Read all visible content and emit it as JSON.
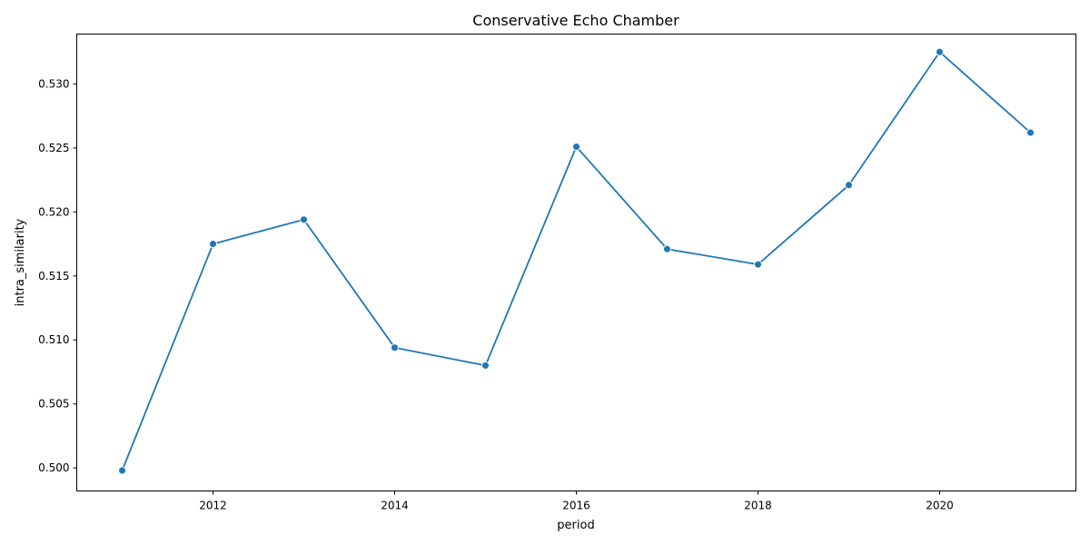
{
  "chart_data": {
    "type": "line",
    "title": "Conservative Echo Chamber",
    "xlabel": "period",
    "ylabel": "intra_similarity",
    "x": [
      2011,
      2012,
      2013,
      2014,
      2015,
      2016,
      2017,
      2018,
      2019,
      2020,
      2021
    ],
    "series": [
      {
        "values": [
          0.4998,
          0.5175,
          0.5194,
          0.5094,
          0.508,
          0.5251,
          0.5171,
          0.5159,
          0.5221,
          0.5325,
          0.5262
        ],
        "color": "#1f77b4"
      }
    ],
    "xlim": [
      2010.5,
      2021.5
    ],
    "ylim": [
      0.4982,
      0.5339
    ],
    "xticks": [
      2012,
      2014,
      2016,
      2018,
      2020
    ],
    "xtick_labels": [
      "2012",
      "2014",
      "2016",
      "2018",
      "2020"
    ],
    "yticks": [
      0.5,
      0.505,
      0.51,
      0.515,
      0.52,
      0.525,
      0.53
    ],
    "ytick_labels": [
      "0.500",
      "0.505",
      "0.510",
      "0.515",
      "0.520",
      "0.525",
      "0.530"
    ],
    "grid": false,
    "legend": "none"
  }
}
